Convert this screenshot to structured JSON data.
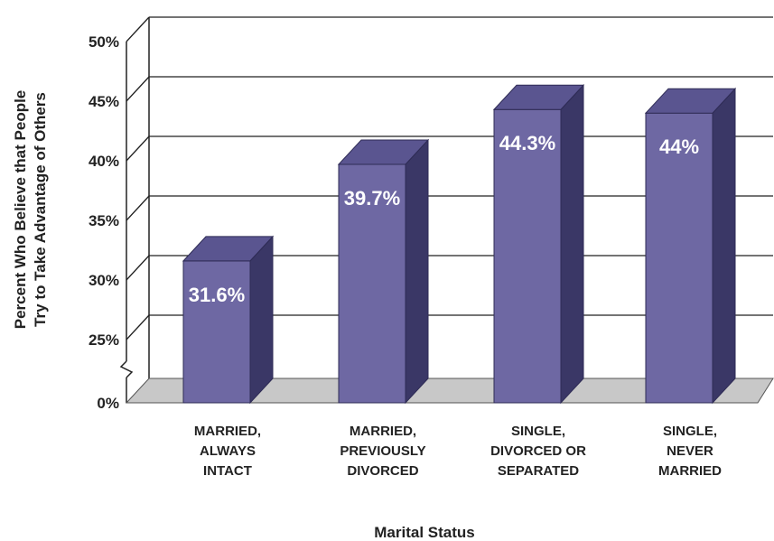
{
  "chart_data": {
    "type": "bar",
    "style": "3d-column",
    "title": "",
    "xlabel": "Marital Status",
    "ylabel_lines": [
      "Percent Who Believe that People",
      "Try to Take Advantage of Others"
    ],
    "ylim": [
      0,
      50
    ],
    "axis_break": true,
    "y_ticks": [
      0,
      25,
      30,
      35,
      40,
      45,
      50
    ],
    "y_tick_labels": [
      "0%",
      "25%",
      "30%",
      "35%",
      "40%",
      "45%",
      "50%"
    ],
    "grid": true,
    "categories": [
      [
        "MARRIED,",
        "ALWAYS",
        "INTACT"
      ],
      [
        "MARRIED,",
        "PREVIOUSLY",
        "DIVORCED"
      ],
      [
        "SINGLE,",
        "DIVORCED OR",
        "SEPARATED"
      ],
      [
        "SINGLE,",
        "NEVER",
        "MARRIED"
      ]
    ],
    "values": [
      31.6,
      39.7,
      44.3,
      44
    ],
    "value_labels": [
      "31.6%",
      "39.7%",
      "44.3%",
      "44%"
    ],
    "colors": {
      "bar_front": "#6e68a3",
      "bar_side": "#3a3766",
      "bar_top": "#5a5590",
      "floor": "#c8c8c8",
      "grid": "#222222"
    }
  }
}
